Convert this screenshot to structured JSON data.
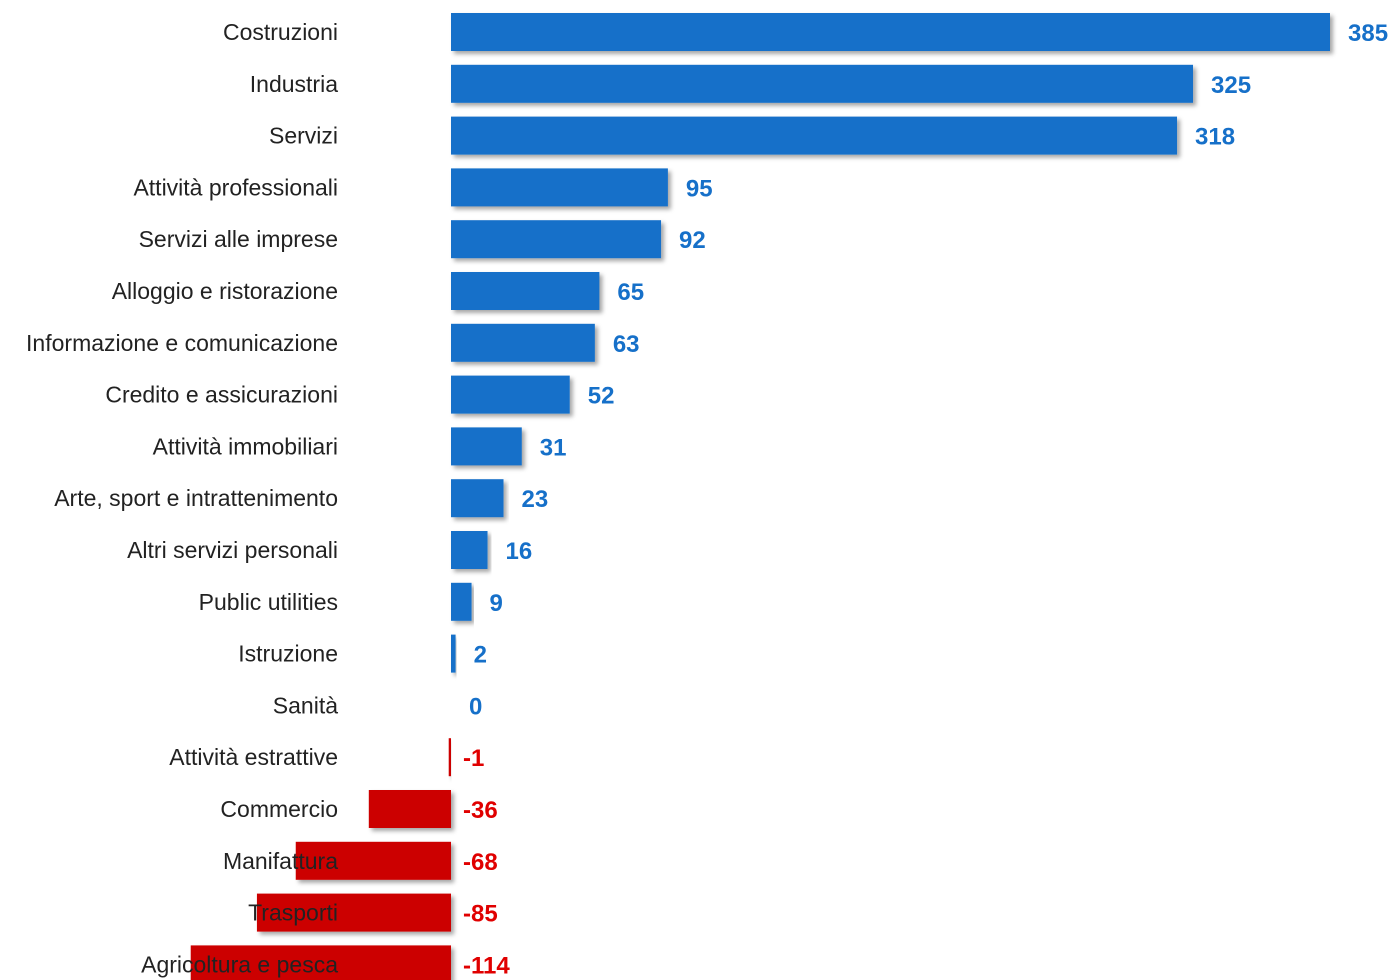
{
  "chart_data": {
    "type": "bar",
    "orientation": "horizontal",
    "categories": [
      "Costruzioni",
      "Industria",
      "Servizi",
      "Attività professionali",
      "Servizi alle imprese",
      "Alloggio e ristorazione",
      "Informazione e comunicazione",
      "Credito e assicurazioni",
      "Attività immobiliari",
      "Arte, sport e intrattenimento",
      "Altri servizi personali",
      "Public utilities",
      "Istruzione",
      "Sanità",
      "Attività estrattive",
      "Commercio",
      "Manifattura",
      "Trasporti",
      "Agricoltura e pesca"
    ],
    "values": [
      385,
      325,
      318,
      95,
      92,
      65,
      63,
      52,
      31,
      23,
      16,
      9,
      2,
      0,
      -1,
      -36,
      -68,
      -85,
      -114
    ],
    "value_labels": [
      "385",
      "325",
      "318",
      "95",
      "92",
      "65",
      "63",
      "52",
      "31",
      "23",
      "16",
      "9",
      "2",
      "0",
      "-1",
      "-36",
      "-68",
      "-85",
      "-114"
    ],
    "colors": {
      "positive": "#1670c9",
      "negative": "#cc0000",
      "positive_label": "#1670c9",
      "negative_label": "#e00000",
      "category_label": "#222222"
    },
    "grid": false,
    "legend": "none",
    "title": "",
    "xlabel": "",
    "ylabel": ""
  }
}
